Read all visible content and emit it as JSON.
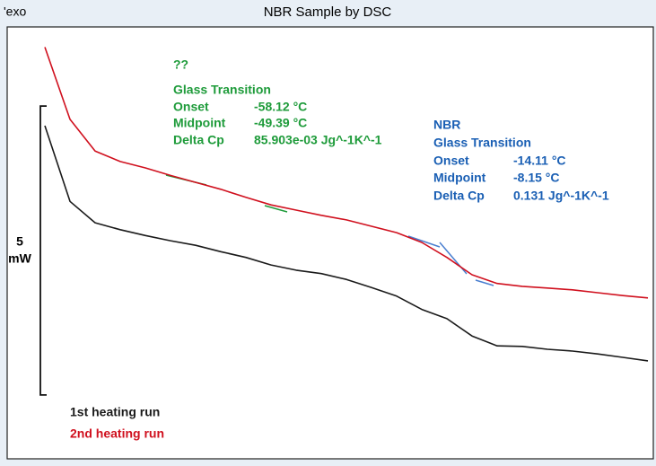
{
  "chart_data": {
    "type": "line",
    "title": "NBR Sample by DSC",
    "corner_label": "'exo",
    "categories": [
      null,
      null,
      null,
      null,
      null,
      null,
      null,
      null,
      null,
      null,
      null,
      null,
      null,
      null,
      null,
      null,
      null,
      null,
      null,
      null,
      null,
      null,
      null,
      null,
      null
    ],
    "ylim": [
      -1.09,
      6.37
    ],
    "scale_bar": {
      "value": 5,
      "unit": "mW"
    },
    "series": [
      {
        "name": "1st heating run",
        "color": "#1a1a1a",
        "values": [
          4.66,
          3.35,
          2.98,
          2.86,
          2.76,
          2.67,
          2.59,
          2.48,
          2.38,
          2.25,
          2.16,
          2.1,
          2.0,
          1.86,
          1.71,
          1.48,
          1.32,
          1.02,
          0.85,
          0.84,
          0.79,
          0.76,
          0.71,
          0.65,
          0.59
        ]
      },
      {
        "name": "2nd heating run",
        "color": "#d0101e",
        "values": [
          6.02,
          4.77,
          4.22,
          4.04,
          3.93,
          3.8,
          3.68,
          3.56,
          3.42,
          3.29,
          3.2,
          3.11,
          3.03,
          2.92,
          2.81,
          2.64,
          2.38,
          2.08,
          1.93,
          1.88,
          1.85,
          1.82,
          1.77,
          1.72,
          1.68
        ]
      }
    ],
    "annotations": [
      {
        "color": "#1e9b3a",
        "lines": [
          "??",
          "Glass Transition"
        ],
        "rows": [
          [
            "Onset",
            "-58.12 °C"
          ],
          [
            "Midpoint",
            "-49.39 °C"
          ],
          [
            "Delta Cp",
            "85.903e-03 Jg^-1K^-1"
          ]
        ]
      },
      {
        "color": "#1a5fb4",
        "lines": [
          "NBR",
          "Glass Transition"
        ],
        "rows": [
          [
            "Onset",
            "-14.11 °C"
          ],
          [
            "Midpoint",
            "-8.15 °C"
          ],
          [
            "Delta Cp",
            "0.131 Jg^-1K^-1"
          ]
        ]
      }
    ]
  }
}
